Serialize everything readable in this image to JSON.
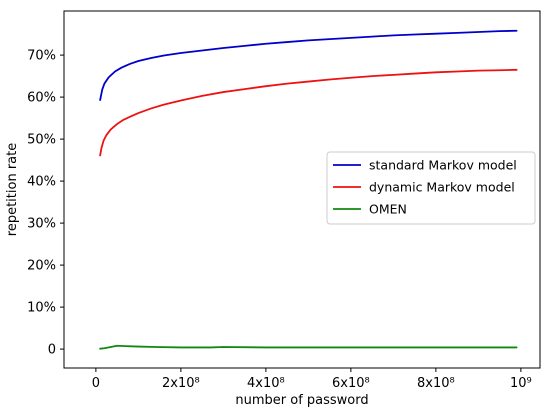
{
  "chart_data": {
    "type": "line",
    "title": "",
    "xlabel": "number of password",
    "ylabel": "repetition rate",
    "xlim": [
      -75000000,
      1045000000
    ],
    "ylim": [
      -0.045,
      0.805
    ],
    "x_ticks": [
      {
        "value": 0,
        "label": "0"
      },
      {
        "value": 200000000,
        "label": "2x10⁸"
      },
      {
        "value": 400000000,
        "label": "4x10⁸"
      },
      {
        "value": 600000000,
        "label": "6x10⁸"
      },
      {
        "value": 800000000,
        "label": "8x10⁸"
      },
      {
        "value": 1000000000,
        "label": "10⁹"
      }
    ],
    "y_ticks": [
      {
        "value": 0.0,
        "label": "0"
      },
      {
        "value": 0.1,
        "label": "10%"
      },
      {
        "value": 0.2,
        "label": "20%"
      },
      {
        "value": 0.3,
        "label": "30%"
      },
      {
        "value": 0.4,
        "label": "40%"
      },
      {
        "value": 0.5,
        "label": "50%"
      },
      {
        "value": 0.6,
        "label": "60%"
      },
      {
        "value": 0.7,
        "label": "70%"
      }
    ],
    "grid": false,
    "legend_position": "center-right",
    "series": [
      {
        "name": "standard Markov model",
        "color": "#0000cc",
        "x": [
          10000000,
          15000000,
          20000000,
          30000000,
          45000000,
          60000000,
          80000000,
          100000000,
          130000000,
          160000000,
          200000000,
          250000000,
          300000000,
          350000000,
          400000000,
          450000000,
          500000000,
          550000000,
          600000000,
          650000000,
          700000000,
          750000000,
          800000000,
          850000000,
          900000000,
          950000000,
          990000000
        ],
        "y": [
          0.593,
          0.618,
          0.632,
          0.647,
          0.661,
          0.67,
          0.679,
          0.686,
          0.693,
          0.699,
          0.705,
          0.711,
          0.717,
          0.722,
          0.727,
          0.731,
          0.735,
          0.738,
          0.741,
          0.744,
          0.747,
          0.749,
          0.751,
          0.753,
          0.755,
          0.757,
          0.758
        ]
      },
      {
        "name": "dynamic Markov model",
        "color": "#ee1111",
        "x": [
          10000000,
          13000000,
          18000000,
          25000000,
          35000000,
          50000000,
          65000000,
          80000000,
          100000000,
          130000000,
          160000000,
          200000000,
          250000000,
          300000000,
          350000000,
          400000000,
          450000000,
          500000000,
          550000000,
          600000000,
          650000000,
          700000000,
          750000000,
          800000000,
          850000000,
          900000000,
          950000000,
          990000000
        ],
        "y": [
          0.461,
          0.478,
          0.496,
          0.51,
          0.523,
          0.536,
          0.546,
          0.553,
          0.562,
          0.573,
          0.582,
          0.592,
          0.603,
          0.612,
          0.619,
          0.626,
          0.632,
          0.637,
          0.642,
          0.646,
          0.65,
          0.653,
          0.656,
          0.659,
          0.661,
          0.663,
          0.664,
          0.665
        ]
      },
      {
        "name": "OMEN",
        "color": "#118811",
        "x": [
          10000000,
          20000000,
          35000000,
          50000000,
          70000000,
          100000000,
          140000000,
          200000000,
          270000000,
          300000000,
          400000000,
          500000000,
          600000000,
          700000000,
          800000000,
          900000000,
          990000000
        ],
        "y": [
          0.001,
          0.002,
          0.005,
          0.008,
          0.007,
          0.006,
          0.005,
          0.004,
          0.004,
          0.005,
          0.004,
          0.004,
          0.004,
          0.004,
          0.004,
          0.004,
          0.004
        ]
      }
    ]
  }
}
